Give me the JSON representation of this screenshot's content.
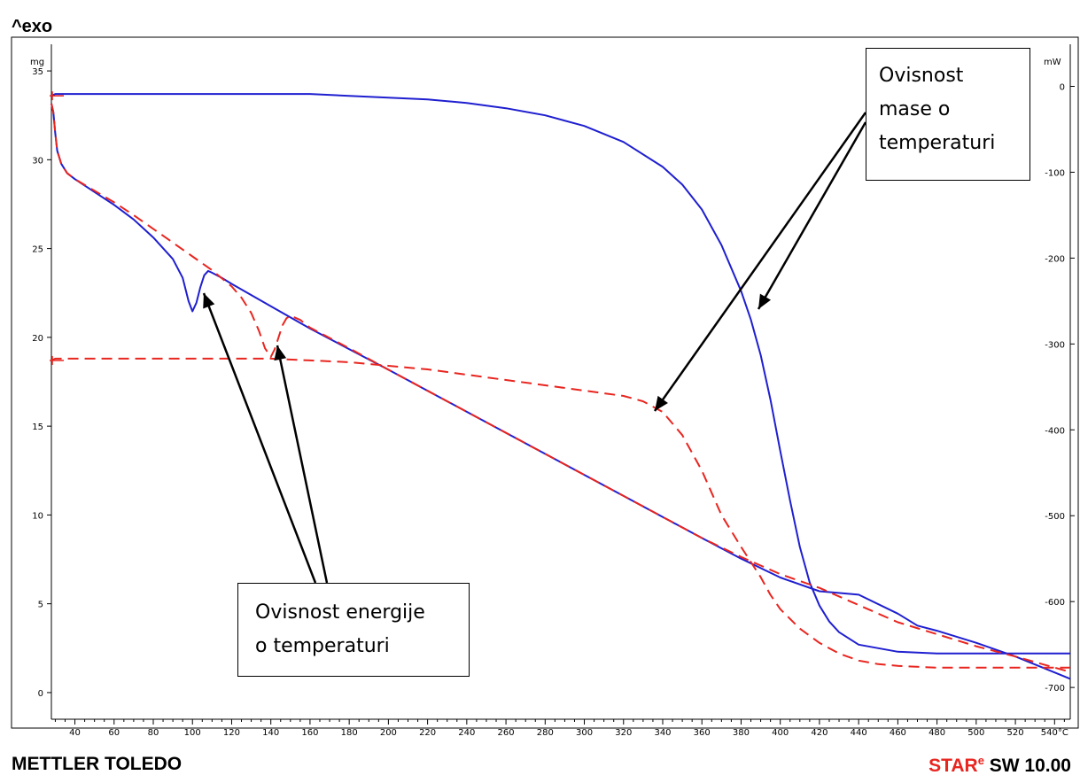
{
  "header": {
    "exo_label": "^exo"
  },
  "footer": {
    "brand": "METTLER TOLEDO",
    "software_prefix_red": "STAR",
    "software_sup": "e",
    "software_suffix": " SW 10.00"
  },
  "annotations": {
    "mass": [
      "Ovisnost",
      "mase o",
      "temperaturi"
    ],
    "energy": [
      "Ovisnost energije",
      "o temperaturi"
    ]
  },
  "colors": {
    "blue": "#1f1fd0",
    "red": "#e8251f",
    "frame": "#000000"
  },
  "chart_data": {
    "type": "line",
    "x_unit": "°C",
    "xlim": [
      28,
      548
    ],
    "x_ticks": [
      40,
      60,
      80,
      100,
      120,
      140,
      160,
      180,
      200,
      220,
      240,
      260,
      280,
      300,
      320,
      340,
      360,
      380,
      400,
      420,
      440,
      460,
      480,
      500,
      520,
      540
    ],
    "x_tick_labels": [
      "40",
      "60",
      "80",
      "100",
      "120",
      "140",
      "160",
      "180",
      "200",
      "220",
      "240",
      "260",
      "280",
      "300",
      "320",
      "340",
      "360",
      "380",
      "400",
      "420",
      "440",
      "460",
      "480",
      "500",
      "520",
      "540°C"
    ],
    "left_axis": {
      "unit": "mg",
      "ylim": [
        -1.5,
        36.5
      ],
      "ticks": [
        0,
        5,
        10,
        15,
        20,
        25,
        30,
        35
      ]
    },
    "right_axis": {
      "unit": "mW",
      "ylim": [
        -737,
        49
      ],
      "ticks": [
        0,
        -100,
        -200,
        -300,
        -400,
        -500,
        -600,
        -700
      ]
    },
    "series": [
      {
        "style": "solid",
        "color": "blue",
        "axis": "mg",
        "x": [
          28,
          30,
          40,
          60,
          80,
          100,
          120,
          140,
          160,
          180,
          200,
          220,
          240,
          260,
          280,
          300,
          320,
          340,
          350,
          360,
          370,
          380,
          385,
          390,
          395,
          400,
          405,
          410,
          415,
          420,
          425,
          430,
          440,
          460,
          480,
          500,
          520,
          540,
          548
        ],
        "y": [
          33.6,
          33.7,
          33.7,
          33.7,
          33.7,
          33.7,
          33.7,
          33.7,
          33.7,
          33.6,
          33.5,
          33.4,
          33.2,
          32.9,
          32.5,
          31.9,
          31.0,
          29.6,
          28.6,
          27.2,
          25.2,
          22.6,
          21.0,
          19.0,
          16.5,
          13.6,
          10.8,
          8.2,
          6.2,
          4.9,
          4.0,
          3.4,
          2.7,
          2.3,
          2.2,
          2.2,
          2.2,
          2.2,
          2.2
        ]
      },
      {
        "style": "solid",
        "color": "blue",
        "axis": "mW",
        "x": [
          28,
          29,
          30,
          31,
          33,
          36,
          40,
          60,
          70,
          80,
          90,
          95,
          98,
          100,
          102,
          104,
          106,
          108,
          110,
          115,
          120,
          140,
          160,
          180,
          200,
          240,
          280,
          320,
          360,
          380,
          400,
          420,
          440,
          460,
          470,
          480,
          500,
          520,
          548
        ],
        "y": [
          -20,
          -30,
          -55,
          -75,
          -90,
          -101,
          -108,
          -138,
          -155,
          -176,
          -201,
          -223,
          -250,
          -262,
          -252,
          -234,
          -220,
          -215,
          -217,
          -223,
          -230,
          -256,
          -282,
          -306,
          -330,
          -379,
          -428,
          -477,
          -526,
          -550,
          -572,
          -588,
          -592,
          -614,
          -628,
          -634,
          -648,
          -664,
          -690
        ]
      },
      {
        "style": "dashed",
        "color": "red",
        "axis": "mg",
        "x": [
          28,
          30,
          40,
          60,
          80,
          100,
          120,
          140,
          160,
          180,
          200,
          220,
          240,
          260,
          280,
          300,
          320,
          330,
          340,
          350,
          360,
          370,
          380,
          390,
          395,
          400,
          410,
          420,
          430,
          440,
          450,
          460,
          480,
          500,
          520,
          540,
          548
        ],
        "y": [
          18.7,
          18.8,
          18.8,
          18.8,
          18.8,
          18.8,
          18.8,
          18.8,
          18.7,
          18.6,
          18.4,
          18.2,
          17.9,
          17.6,
          17.3,
          17.0,
          16.7,
          16.4,
          15.8,
          14.5,
          12.5,
          10.0,
          8.2,
          6.5,
          5.5,
          4.7,
          3.6,
          2.8,
          2.2,
          1.8,
          1.6,
          1.5,
          1.4,
          1.4,
          1.4,
          1.4,
          1.4
        ]
      },
      {
        "style": "dashed",
        "color": "red",
        "axis": "mW",
        "x": [
          28,
          29,
          30,
          31,
          33,
          36,
          40,
          60,
          70,
          80,
          90,
          100,
          110,
          120,
          125,
          130,
          134,
          137,
          140,
          142,
          144,
          146,
          148,
          150,
          155,
          160,
          180,
          200,
          240,
          280,
          320,
          360,
          380,
          400,
          420,
          440,
          460,
          480,
          500,
          520,
          548
        ],
        "y": [
          -20,
          -30,
          -55,
          -75,
          -90,
          -101,
          -108,
          -135,
          -150,
          -166,
          -182,
          -198,
          -214,
          -233,
          -246,
          -264,
          -285,
          -305,
          -315,
          -306,
          -292,
          -278,
          -270,
          -267,
          -272,
          -281,
          -305,
          -330,
          -379,
          -428,
          -477,
          -526,
          -548,
          -568,
          -584,
          -604,
          -624,
          -638,
          -652,
          -664,
          -682
        ]
      }
    ]
  }
}
